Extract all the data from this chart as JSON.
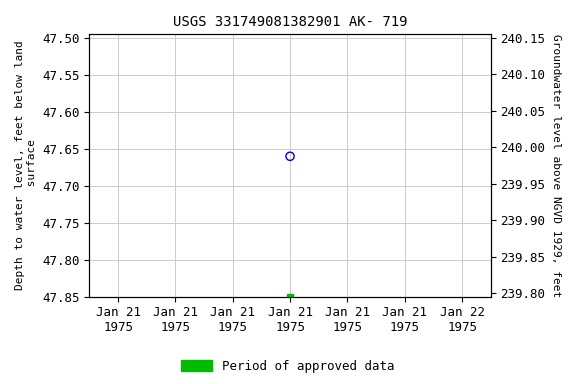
{
  "title": "USGS 331749081382901 AK- 719",
  "ylabel_left": "Depth to water level, feet below land\n surface",
  "ylabel_right": "Groundwater level above NGVD 1929, feet",
  "ylim_left": [
    47.85,
    47.495
  ],
  "ylim_right": [
    239.795,
    240.155
  ],
  "yticks_left": [
    47.5,
    47.55,
    47.6,
    47.65,
    47.7,
    47.75,
    47.8,
    47.85
  ],
  "yticks_right": [
    239.8,
    239.85,
    239.9,
    239.95,
    240.0,
    240.05,
    240.1,
    240.15
  ],
  "legend_label": "Period of approved data",
  "legend_color": "#00bb00",
  "background_color": "#ffffff",
  "grid_color": "#cccccc",
  "title_fontsize": 10,
  "label_fontsize": 8,
  "tick_fontsize": 9,
  "legend_fontsize": 9,
  "xtick_labels": [
    "Jan 21\n1975",
    "Jan 21\n1975",
    "Jan 21\n1975",
    "Jan 21\n1975",
    "Jan 21\n1975",
    "Jan 21\n1975",
    "Jan 22\n1975"
  ],
  "xtick_positions": [
    0,
    1,
    2,
    3,
    4,
    5,
    6
  ],
  "data_x_blue": 3.0,
  "data_y_blue": 47.66,
  "data_x_green": 3.0,
  "data_y_green": 47.85,
  "blue_marker_size": 35,
  "green_marker_size": 20
}
